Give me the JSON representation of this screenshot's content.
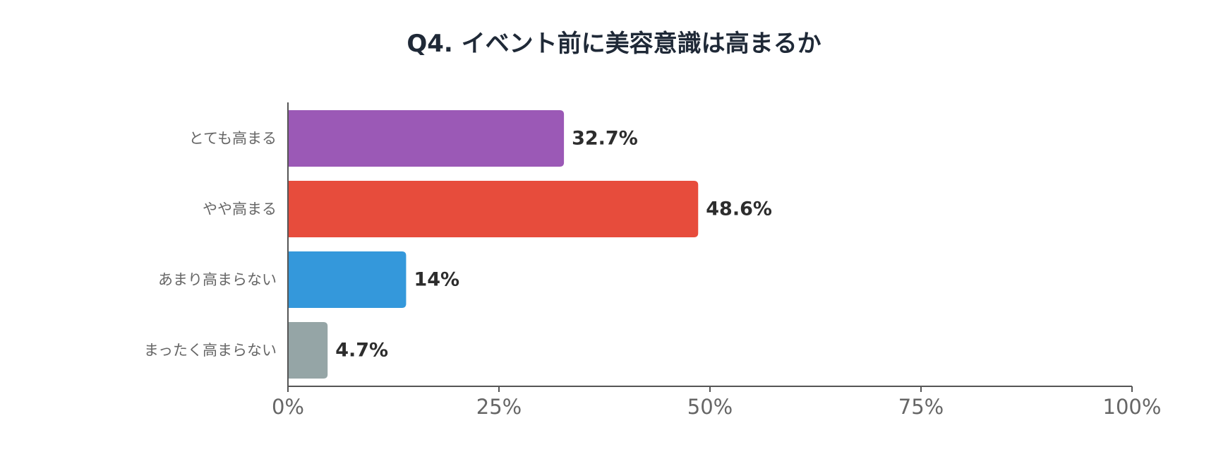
{
  "chart_data": {
    "type": "bar",
    "orientation": "horizontal",
    "title": "Q4. イベント前に美容意識は高まるか",
    "categories": [
      "とても高まる",
      "やや高まる",
      "あまり高まらない",
      "まったく高まらない"
    ],
    "values": [
      32.7,
      48.6,
      14,
      4.7
    ],
    "value_labels": [
      "32.7%",
      "48.6%",
      "14%",
      "4.7%"
    ],
    "colors": [
      "#9b59b6",
      "#e74c3c",
      "#3498db",
      "#95a5a6"
    ],
    "xlim": [
      0,
      100
    ],
    "x_ticks": [
      0,
      25,
      50,
      75,
      100
    ],
    "x_tick_labels": [
      "0%",
      "25%",
      "50%",
      "75%",
      "100%"
    ],
    "xlabel": "",
    "ylabel": "",
    "grid": false,
    "legend": "none"
  }
}
